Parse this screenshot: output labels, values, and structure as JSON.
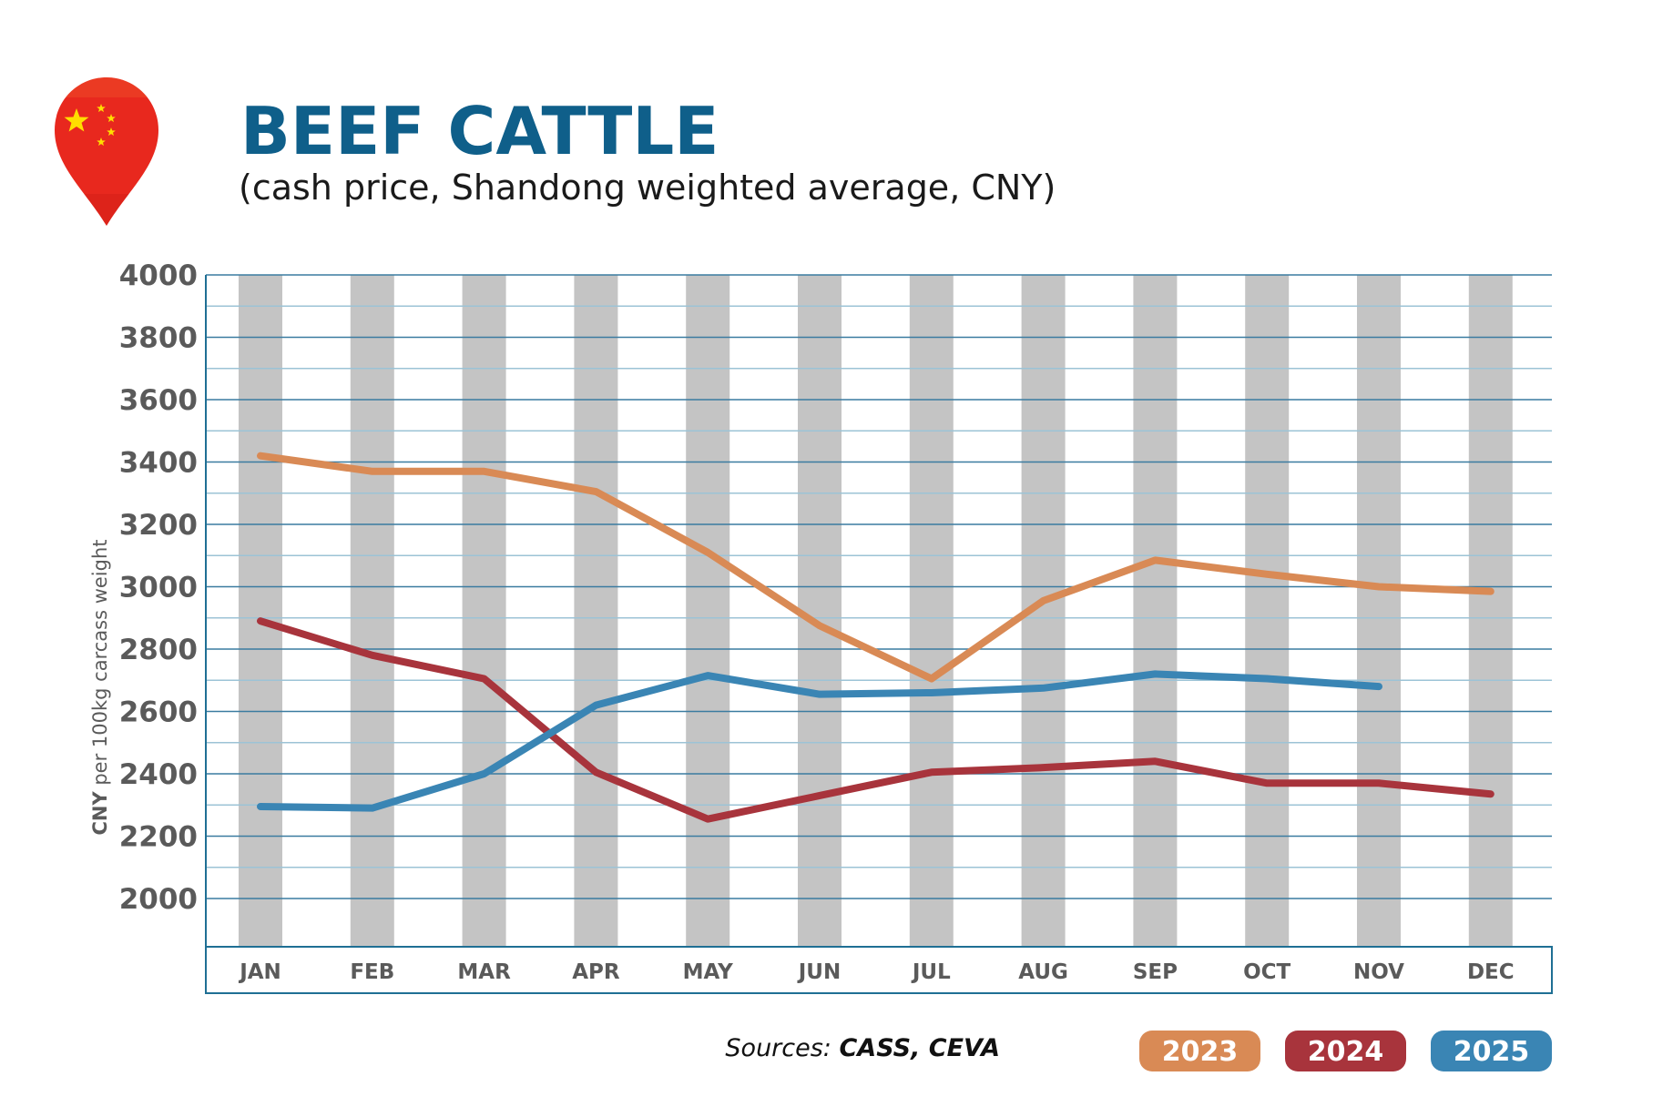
{
  "header": {
    "title": "BEEF CATTLE",
    "subtitle": "(cash price, Shandong weighted average, CNY)"
  },
  "colors": {
    "title": "#0f5f8a",
    "axis": "#1f6f94",
    "grid_major": "#3a7ba0",
    "grid_minor": "#9cc3d6",
    "bands": "#c4c4c4",
    "flag_red": "#e8281e",
    "flag_yellow": "#ffde00"
  },
  "icons": {
    "map_pin": "china-flag-location-pin-icon"
  },
  "chart_data": {
    "type": "line",
    "title": "BEEF CATTLE",
    "subtitle": "(cash price, Shandong weighted average, CNY)",
    "xlabel": "",
    "ylabel_bold": "CNY",
    "ylabel_rest": " per 100kg carcass weight",
    "categories": [
      "JAN",
      "FEB",
      "MAR",
      "APR",
      "MAY",
      "JUN",
      "JUL",
      "AUG",
      "SEP",
      "OCT",
      "NOV",
      "DEC"
    ],
    "y_ticks": [
      2000,
      2200,
      2400,
      2600,
      2800,
      3000,
      3200,
      3400,
      3600,
      3800,
      4000
    ],
    "ylim": [
      1860,
      4000
    ],
    "grid": true,
    "alternating_month_bands": true,
    "legend_position": "bottom-right",
    "series": [
      {
        "name": "2023",
        "color": "#d98a55",
        "values": [
          3420,
          3370,
          3370,
          3305,
          3110,
          2875,
          2705,
          2955,
          3085,
          3040,
          3000,
          2985
        ]
      },
      {
        "name": "2024",
        "color": "#a8343c",
        "values": [
          2890,
          2780,
          2705,
          2405,
          2255,
          2330,
          2405,
          2420,
          2440,
          2370,
          2370,
          2335
        ]
      },
      {
        "name": "2025",
        "color": "#3a85b4",
        "values": [
          2295,
          2290,
          2400,
          2620,
          2715,
          2655,
          2660,
          2675,
          2720,
          2705,
          2680,
          null
        ]
      }
    ]
  },
  "footer": {
    "sources_prefix": "Sources: ",
    "sources_names": "CASS, CEVA"
  }
}
